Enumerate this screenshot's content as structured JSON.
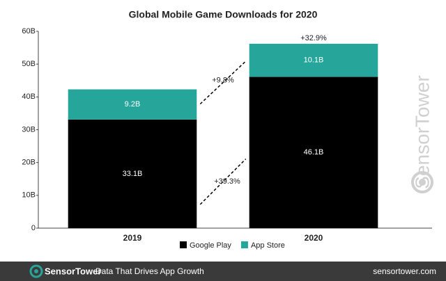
{
  "chart_data": {
    "type": "stacked_bar",
    "title": "Global Mobile Game Downloads for 2020",
    "categories": [
      "2019",
      "2020"
    ],
    "series": [
      {
        "name": "Google Play",
        "color": "#000000",
        "values": [
          33.1,
          46.1
        ],
        "value_labels": [
          "33.1B",
          "46.1B"
        ]
      },
      {
        "name": "App Store",
        "color": "#26a69a",
        "values": [
          9.2,
          10.1
        ],
        "value_labels": [
          "9.2B",
          "10.1B"
        ]
      }
    ],
    "annotations": [
      "+39.3%",
      "+9.8%",
      "+32.9%"
    ],
    "ylim": [
      0,
      60
    ],
    "yticks": [
      0,
      {
        "value": 10,
        "label": "10B"
      },
      {
        "value": 20,
        "label": "20B"
      },
      {
        "value": 30,
        "label": "30B"
      },
      {
        "value": 40,
        "label": "40B"
      },
      {
        "value": 50,
        "label": "50B"
      },
      {
        "value": 60,
        "label": "60B"
      }
    ],
    "grid": false
  },
  "watermark": "SensorTower",
  "footer": {
    "brand": "SensorTower",
    "tagline": "Data That Drives App Growth",
    "url": "sensortower.com"
  }
}
